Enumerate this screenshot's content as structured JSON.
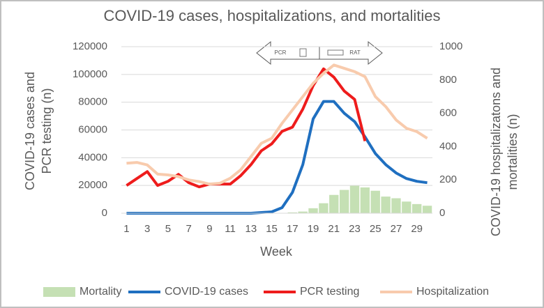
{
  "chart_data": {
    "type": "combo",
    "title": "COVID-19 cases, hospitalizations, and mortalities",
    "xlabel": "Week",
    "ylabel": [
      "COVID-19 cases and",
      "PCR testing (n)"
    ],
    "y2label": [
      "COVID-19 hospitalizatons and",
      "mortalities (n)"
    ],
    "annotations": [
      "PCR",
      "RAT"
    ],
    "x": [
      1,
      2,
      3,
      4,
      5,
      6,
      7,
      8,
      9,
      10,
      11,
      12,
      13,
      14,
      15,
      16,
      17,
      18,
      19,
      20,
      21,
      22,
      23,
      24,
      25,
      26,
      27,
      28,
      29,
      30
    ],
    "xlim": [
      0.5,
      30.5
    ],
    "xticks": [
      1,
      3,
      5,
      7,
      9,
      11,
      13,
      15,
      17,
      19,
      21,
      23,
      25,
      27,
      29
    ],
    "ylim": [
      0,
      120000
    ],
    "yticks": [
      0,
      20000,
      40000,
      60000,
      80000,
      100000,
      120000
    ],
    "y2lim": [
      0,
      1000
    ],
    "y2ticks": [
      0,
      200,
      400,
      600,
      800,
      1000
    ],
    "grid": true,
    "legend": "bottom",
    "series": [
      {
        "name": "Mortality",
        "type": "bar",
        "axis": "y2",
        "color": "#c5e0b4",
        "values": [
          0,
          0,
          0,
          0,
          0,
          0,
          0,
          0,
          0,
          0,
          0,
          0,
          0,
          0,
          0,
          0,
          5,
          10,
          30,
          60,
          110,
          140,
          165,
          155,
          135,
          100,
          90,
          70,
          55,
          45
        ]
      },
      {
        "name": "COVID-19 cases",
        "type": "line",
        "color": "#1f6fc0",
        "values": [
          0,
          0,
          0,
          0,
          0,
          0,
          0,
          0,
          0,
          0,
          0,
          0,
          0,
          500,
          1000,
          4000,
          15000,
          35000,
          68000,
          80500,
          80500,
          72000,
          66000,
          55000,
          43000,
          35000,
          29000,
          25000,
          23000,
          22000
        ]
      },
      {
        "name": "PCR testing",
        "type": "line",
        "color": "#ee1c1c",
        "values": [
          20000,
          25000,
          30000,
          20000,
          23000,
          28000,
          22000,
          19000,
          21000,
          21000,
          21000,
          27000,
          35000,
          45000,
          50000,
          59000,
          62000,
          75000,
          92000,
          104000,
          98000,
          88000,
          82000,
          52000,
          null,
          null,
          null,
          null,
          null,
          null
        ]
      },
      {
        "name": "Hospitalization",
        "type": "line",
        "axis": "y2",
        "color": "#f8cbad",
        "values": [
          300,
          305,
          290,
          235,
          230,
          220,
          200,
          190,
          175,
          180,
          210,
          260,
          340,
          420,
          450,
          540,
          620,
          700,
          780,
          840,
          890,
          870,
          850,
          820,
          700,
          640,
          560,
          510,
          490,
          450
        ]
      }
    ]
  }
}
